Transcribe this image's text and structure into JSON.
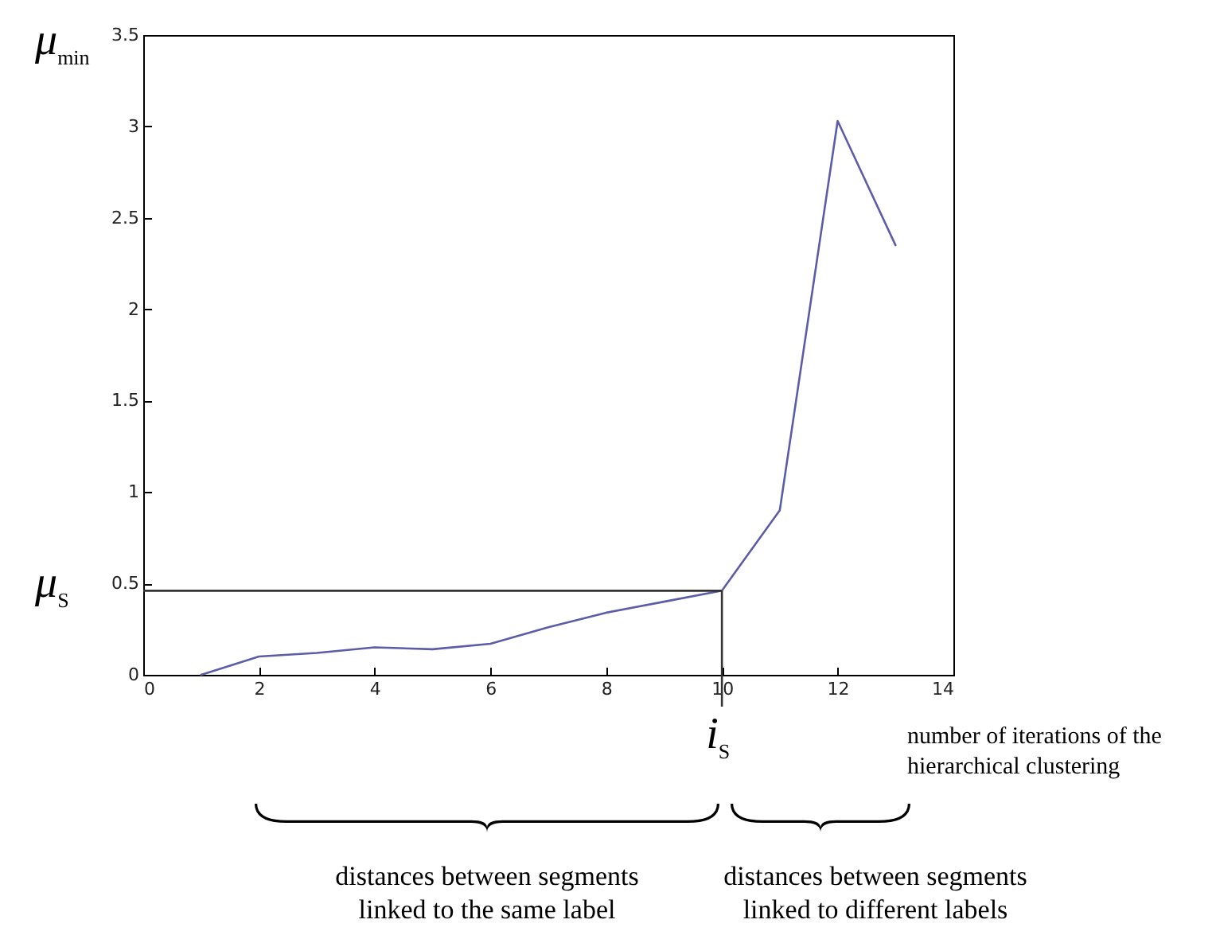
{
  "chart_data": {
    "type": "line",
    "xlabel": "number of iterations of the hierarchical clustering",
    "ylabel": "μ$_{min}$",
    "x": [
      1,
      2,
      3,
      4,
      5,
      6,
      7,
      8,
      9,
      10,
      11,
      12,
      13
    ],
    "series": [
      {
        "color": "#5c5ca8",
        "values": [
          0,
          0.1,
          0.12,
          0.15,
          0.14,
          0.17,
          0.26,
          0.34,
          0.4,
          0.46,
          0.9,
          3.03,
          2.35
        ]
      }
    ],
    "xlim": [
      0,
      14
    ],
    "xticks": [
      0,
      2,
      4,
      6,
      8,
      10,
      12,
      14
    ],
    "ylim": [
      0,
      3.5
    ],
    "yticks": [
      0,
      0.5,
      1,
      1.5,
      2,
      2.5,
      3,
      3.5
    ],
    "ref_lines": [
      {
        "axis": "y",
        "value": 0.46,
        "label": "μ$_{S}$",
        "color": "#333333"
      },
      {
        "axis": "x",
        "value": 10,
        "label": "i$_{S}$",
        "color": "#333333"
      }
    ],
    "annotations": [
      "distances between segments linked to the same label",
      "distances between segments linked to different labels"
    ],
    "grid": false,
    "marker": "none",
    "line_style": "solid"
  }
}
